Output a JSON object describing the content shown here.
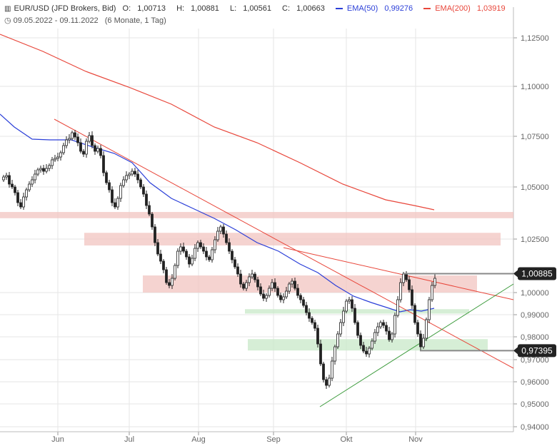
{
  "header": {
    "symbol": "EUR/USD (JFD Brokers, Bid)",
    "open_label": "O:",
    "open": "1,00713",
    "high_label": "H:",
    "high": "1,00881",
    "low_label": "L:",
    "low": "1,00561",
    "close_label": "C:",
    "close": "1,00663",
    "ema50_label": "EMA(50)",
    "ema50_value": "0,99276",
    "ema50_color": "#2b3fd8",
    "ema200_label": "EMA(200)",
    "ema200_value": "1,03919",
    "ema200_color": "#e8463a",
    "date_range": "09.05.2022 - 09.11.2022",
    "period": "(6 Monate, 1 Tag)",
    "chart_icon": "candlestick-icon",
    "clock_icon": "clock-icon"
  },
  "chart_data": {
    "type": "candlestick",
    "yaxis": {
      "ticks": [
        0.94,
        0.95,
        0.96,
        0.97,
        0.98,
        0.99,
        1.0,
        1.025,
        1.05,
        1.075,
        1.1,
        1.125
      ],
      "tick_labels": [
        "0,94000",
        "0,95000",
        "0,96000",
        "0,97000",
        "0,98000",
        "0,99000",
        "1,00000",
        "1,02500",
        "1,05000",
        "1,07500",
        "1,10000",
        "1,12500"
      ],
      "scale": "log-like"
    },
    "xaxis": {
      "tick_labels": [
        "Jun",
        "Jul",
        "Aug",
        "Sep",
        "Okt",
        "Nov"
      ]
    },
    "price_tags": [
      {
        "label": "1,00885",
        "value": 1.00885
      },
      {
        "label": "0,97395",
        "value": 0.97395
      }
    ],
    "zones": [
      {
        "type": "resistance",
        "from": 1.035,
        "to": 1.038
      },
      {
        "type": "resistance",
        "from": 1.022,
        "to": 1.028
      },
      {
        "type": "resistance",
        "from": 1.0,
        "to": 1.008
      },
      {
        "type": "support",
        "from": 0.9905,
        "to": 0.9925
      },
      {
        "type": "support",
        "from": 0.974,
        "to": 0.979
      }
    ],
    "colors": {
      "up_candle": "#ffffff",
      "down_candle": "#222222",
      "zone_resistance": "#f2c4c0",
      "zone_support": "#c8e8c8",
      "trend_down": "#e8463a",
      "trend_up": "#3a9a3a",
      "grid": "#e6e6e6",
      "tag_bg": "#222222"
    },
    "series": [
      {
        "name": "EMA(50)",
        "color": "#2b3fd8"
      },
      {
        "name": "EMA(200)",
        "color": "#e8463a"
      }
    ]
  }
}
